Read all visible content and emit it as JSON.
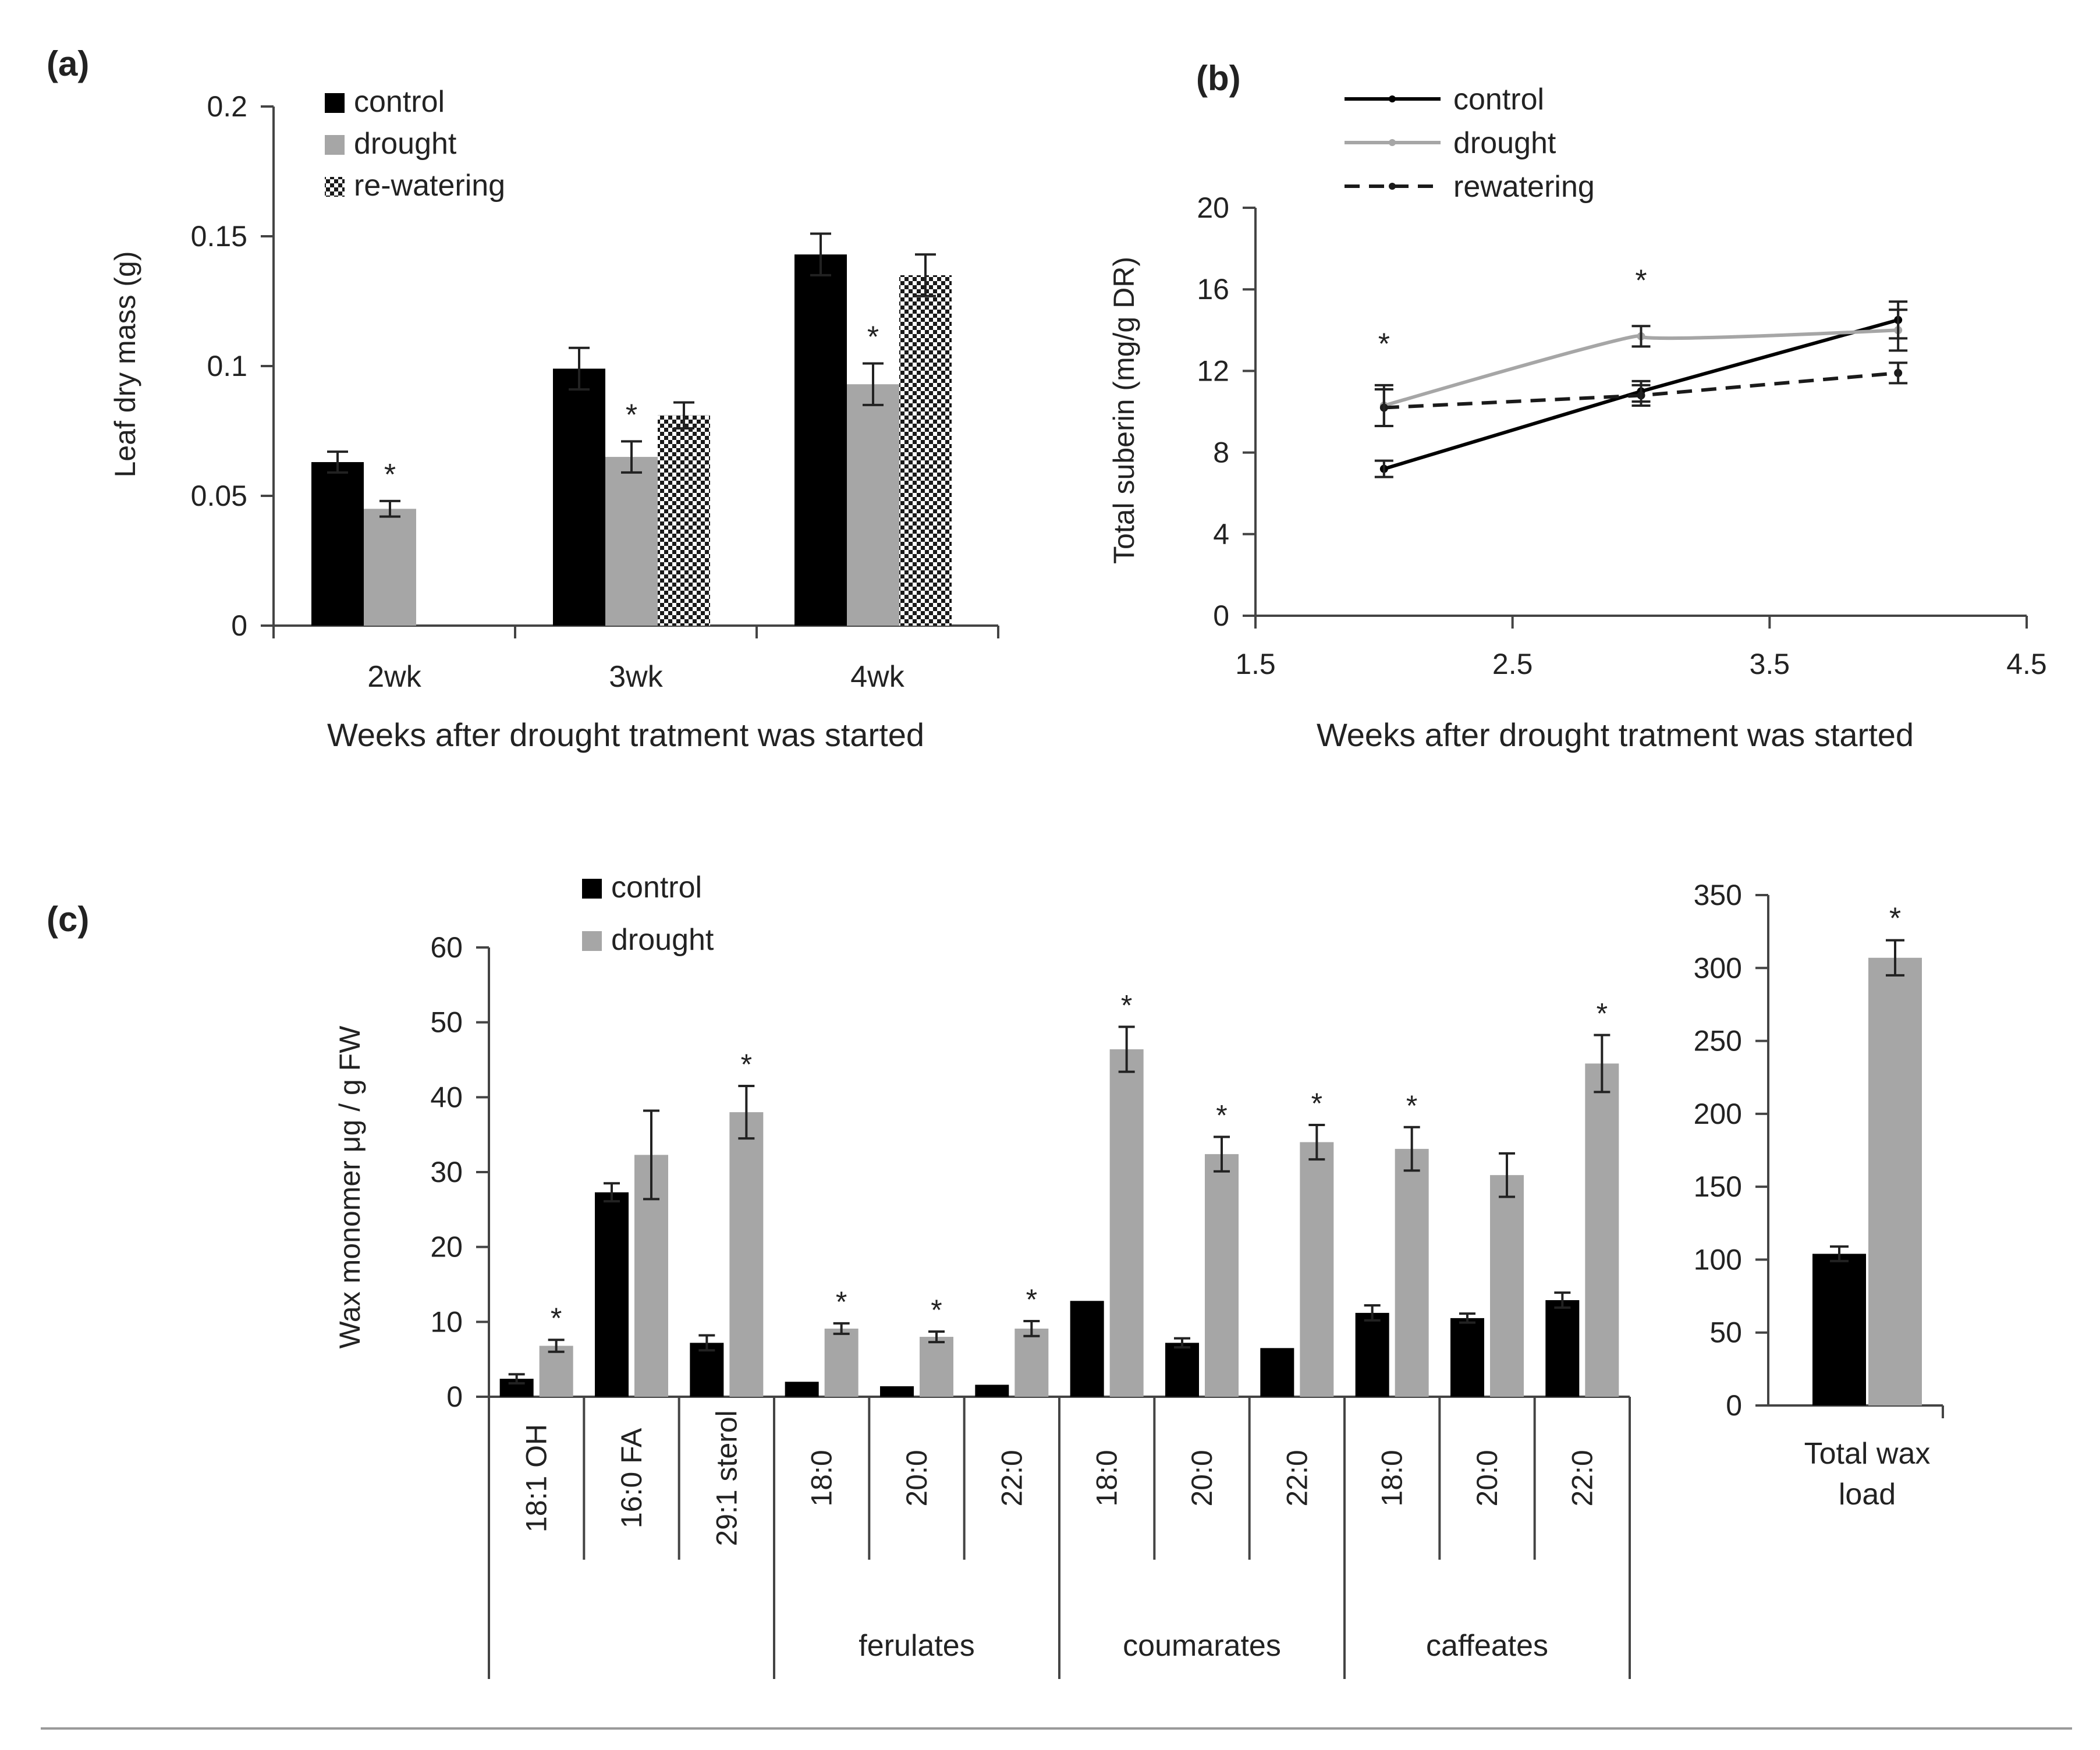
{
  "colors": {
    "control": "#000000",
    "drought": "#a6a6a6",
    "rewatering_line": "#1a1a1a",
    "text": "#222222",
    "axis": "#444444"
  },
  "figure_rule": true,
  "chart_data": [
    {
      "panel": "(a)",
      "type": "bar",
      "xlabel": "Weeks after drought tratment was started",
      "ylabel": "Leaf dry mass (g)",
      "ylim": [
        0,
        0.2
      ],
      "yticks": [
        0,
        0.05,
        0.1,
        0.15,
        0.2
      ],
      "ytick_labels": [
        "0",
        "0.05",
        "0.1",
        "0.15",
        "0.2"
      ],
      "categories": [
        "2wk",
        "3wk",
        "4wk"
      ],
      "legend": [
        "control",
        "drought",
        "re-watering"
      ],
      "series": [
        {
          "name": "control",
          "pattern": "solid-black",
          "values": [
            0.063,
            0.099,
            0.143
          ],
          "errors": [
            0.004,
            0.008,
            0.008
          ],
          "sig": [
            false,
            false,
            false
          ]
        },
        {
          "name": "drought",
          "pattern": "solid-gray",
          "values": [
            0.045,
            0.065,
            0.093
          ],
          "errors": [
            0.003,
            0.006,
            0.008
          ],
          "sig": [
            true,
            true,
            true
          ]
        },
        {
          "name": "re-watering",
          "pattern": "checker",
          "values": [
            null,
            0.081,
            0.135
          ],
          "errors": [
            null,
            0.005,
            0.008
          ],
          "sig": [
            false,
            false,
            false
          ]
        }
      ],
      "sig_label": "*"
    },
    {
      "panel": "(b)",
      "type": "line",
      "xlabel": "Weeks after drought tratment was started",
      "ylabel": "Total suberin  (mg/g DR)",
      "xlim": [
        1.5,
        4.5
      ],
      "ylim": [
        0,
        20
      ],
      "xticks": [
        1.5,
        2.5,
        3.5,
        4.5
      ],
      "xtick_labels": [
        "1.5",
        "2.5",
        "3.5",
        "4.5"
      ],
      "yticks": [
        0,
        4,
        8,
        12,
        16,
        20
      ],
      "ytick_labels": [
        "0",
        "4",
        "8",
        "12",
        "16",
        "20"
      ],
      "legend": [
        "control",
        "drought",
        "rewatering"
      ],
      "x": [
        2,
        3,
        4
      ],
      "series": [
        {
          "name": "control",
          "style": "solid-black",
          "values": [
            7.2,
            11.0,
            14.5
          ],
          "errors": [
            0.4,
            0.5,
            0.9
          ]
        },
        {
          "name": "drought",
          "style": "solid-gray",
          "values": [
            10.3,
            13.7,
            14.0
          ],
          "errors": [
            1.0,
            0.5,
            1.0
          ]
        },
        {
          "name": "rewatering",
          "style": "dashed-black",
          "values": [
            10.2,
            10.8,
            11.9
          ],
          "errors": [
            0.9,
            0.5,
            0.5
          ]
        }
      ],
      "annotations": [
        {
          "x": 2,
          "y": 13.4,
          "text": "*"
        },
        {
          "x": 3,
          "y": 16.5,
          "text": "*"
        }
      ]
    },
    {
      "panel": "(c)",
      "type": "bar",
      "ylabel": "Wax monomer μg / g FW",
      "ylim": [
        0,
        60
      ],
      "yticks": [
        0,
        10,
        20,
        30,
        40,
        50,
        60
      ],
      "ytick_labels": [
        "0",
        "10",
        "20",
        "30",
        "40",
        "50",
        "60"
      ],
      "categories": [
        "18:1 OH",
        "16:0 FA",
        "29:1 sterol",
        "18:0",
        "20:0",
        "22:0",
        "18:0",
        "20:0",
        "22:0",
        "18:0",
        "20:0",
        "22:0"
      ],
      "groups": [
        {
          "label": "",
          "count": 3
        },
        {
          "label": "ferulates",
          "count": 3
        },
        {
          "label": "coumarates",
          "count": 3
        },
        {
          "label": "caffeates",
          "count": 3
        }
      ],
      "legend": [
        "control",
        "drought"
      ],
      "series": [
        {
          "name": "control",
          "values": [
            2.4,
            27.3,
            7.2,
            2.0,
            1.4,
            1.6,
            12.8,
            7.2,
            6.5,
            11.2,
            10.5,
            12.9
          ],
          "errors": [
            0.6,
            1.2,
            1.0,
            0,
            0,
            0,
            0,
            0.6,
            0,
            1.0,
            0.6,
            1.0
          ]
        },
        {
          "name": "drought",
          "values": [
            6.8,
            32.3,
            38.0,
            9.1,
            8.0,
            9.1,
            46.4,
            32.4,
            34.0,
            33.1,
            29.6,
            44.5
          ],
          "errors": [
            0.8,
            5.9,
            3.5,
            0.7,
            0.7,
            1.0,
            3.0,
            2.3,
            2.3,
            2.9,
            2.9,
            3.8
          ],
          "sig": [
            true,
            false,
            true,
            true,
            true,
            true,
            true,
            true,
            true,
            true,
            false,
            true
          ]
        }
      ],
      "sig_label": "*"
    },
    {
      "panel": "(c) inset",
      "type": "bar",
      "ylim": [
        0,
        350
      ],
      "yticks": [
        0,
        50,
        100,
        150,
        200,
        250,
        300,
        350
      ],
      "ytick_labels": [
        "0",
        "50",
        "100",
        "150",
        "200",
        "250",
        "300",
        "350"
      ],
      "categories": [
        "Total wax load"
      ],
      "category_lines": [
        "Total wax",
        "load"
      ],
      "series": [
        {
          "name": "control",
          "values": [
            104
          ],
          "errors": [
            5
          ]
        },
        {
          "name": "drought",
          "values": [
            307
          ],
          "errors": [
            12
          ],
          "sig": [
            true
          ]
        }
      ],
      "sig_label": "*"
    }
  ]
}
